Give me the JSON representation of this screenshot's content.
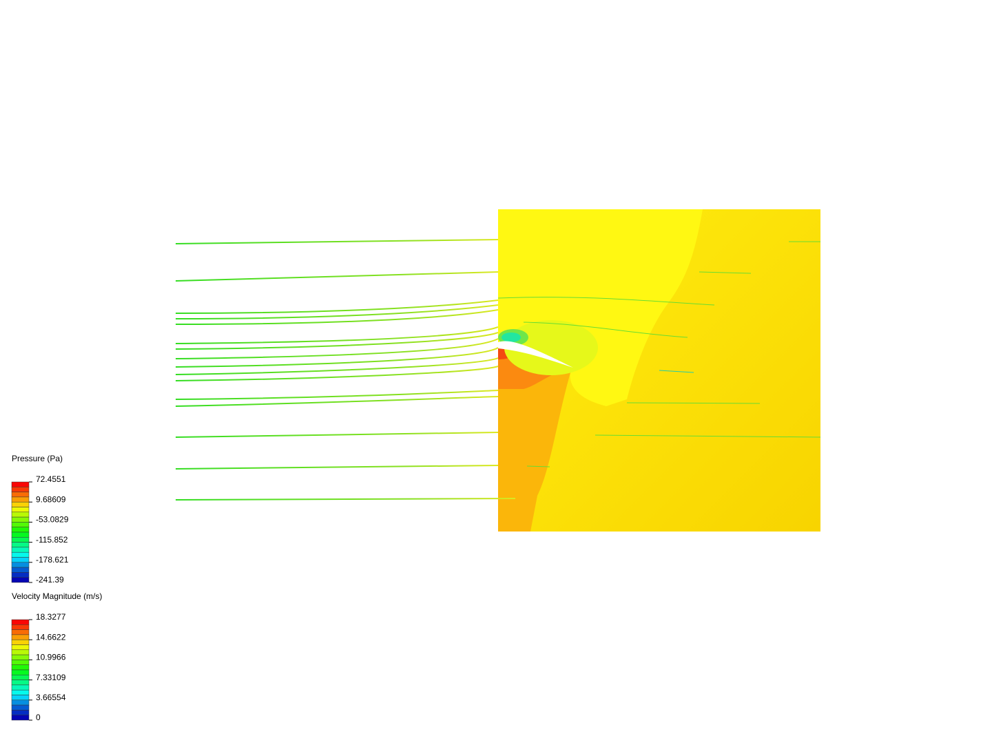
{
  "legends": [
    {
      "title": "Pressure (Pa)",
      "ticks": [
        "72.4551",
        "9.68609",
        "-53.0829",
        "-115.852",
        "-178.621",
        "-241.39"
      ]
    },
    {
      "title": "Velocity Magnitude (m/s)",
      "ticks": [
        "18.3277",
        "14.6622",
        "10.9966",
        "7.33109",
        "3.66554",
        "0"
      ]
    }
  ]
}
